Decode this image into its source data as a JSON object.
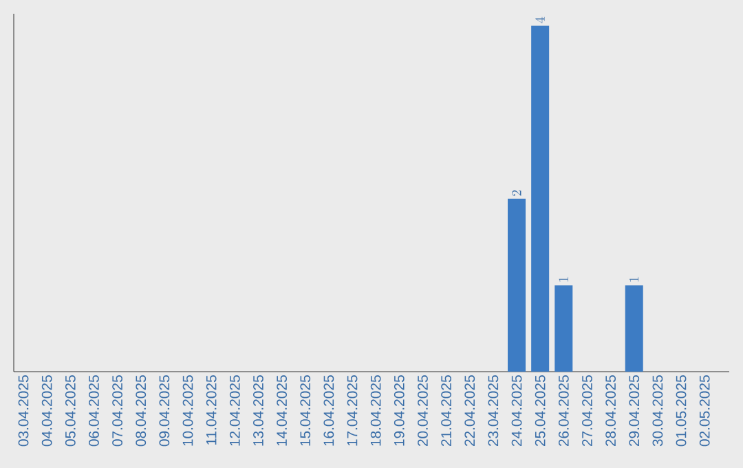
{
  "chart_data": {
    "type": "bar",
    "categories": [
      "03.04.2025",
      "04.04.2025",
      "05.04.2025",
      "06.04.2025",
      "07.04.2025",
      "08.04.2025",
      "09.04.2025",
      "10.04.2025",
      "11.04.2025",
      "12.04.2025",
      "13.04.2025",
      "14.04.2025",
      "15.04.2025",
      "16.04.2025",
      "17.04.2025",
      "18.04.2025",
      "19.04.2025",
      "20.04.2025",
      "21.04.2025",
      "22.04.2025",
      "23.04.2025",
      "24.04.2025",
      "25.04.2025",
      "26.04.2025",
      "27.04.2025",
      "28.04.2025",
      "29.04.2025",
      "30.04.2025",
      "01.05.2025",
      "02.05.2025"
    ],
    "values": [
      null,
      null,
      null,
      null,
      null,
      null,
      null,
      null,
      null,
      null,
      null,
      null,
      null,
      null,
      null,
      null,
      null,
      null,
      null,
      null,
      null,
      2,
      4,
      1,
      null,
      null,
      1,
      null,
      null,
      null
    ],
    "data_labels": true,
    "color": "#3d7cc4",
    "tick_labels": "x"
  }
}
